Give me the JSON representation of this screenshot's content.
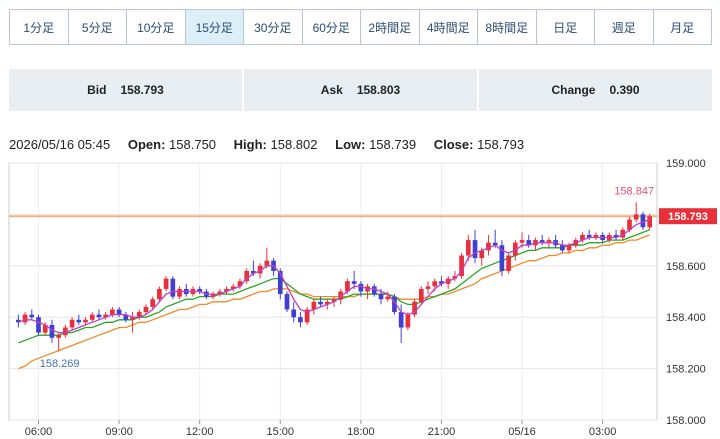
{
  "timeframes": [
    "1分足",
    "5分足",
    "10分足",
    "15分足",
    "30分足",
    "60分足",
    "2時間足",
    "4時間足",
    "8時間足",
    "日足",
    "週足",
    "月足"
  ],
  "active_timeframe": "15分足",
  "quote": {
    "bid_label": "Bid",
    "bid_value": "158.793",
    "ask_label": "Ask",
    "ask_value": "158.803",
    "change_label": "Change",
    "change_value": "0.390"
  },
  "ohlc": {
    "datetime": "2026/05/16 05:45",
    "open_label": "Open:",
    "open": "158.750",
    "high_label": "High:",
    "high": "158.802",
    "low_label": "Low:",
    "low": "158.739",
    "close_label": "Close:",
    "close": "158.793"
  },
  "chart_data": {
    "type": "candlestick",
    "ylim": [
      158.0,
      159.0
    ],
    "y_ticks": [
      "159.000",
      "158.800",
      "158.600",
      "158.400",
      "158.200",
      "158.000"
    ],
    "x_ticks": [
      "06:00",
      "09:00",
      "12:00",
      "15:00",
      "18:00",
      "21:00",
      "05/16",
      "03:00"
    ],
    "current_price": "158.793",
    "high_annotation": "158.847",
    "low_annotation": "158.269",
    "colors": {
      "up": "#e8303a",
      "down": "#4040d0",
      "ma1": "#c040c0",
      "ma2": "#2aa52a",
      "ma3": "#ee8a2a",
      "price_line": "#f0b080",
      "price_tag": "#e8303a",
      "high_text": "#e05070",
      "low_text": "#4070b0"
    },
    "candles": [
      [
        158.39,
        158.41,
        158.36,
        158.38
      ],
      [
        158.38,
        158.42,
        158.37,
        158.41
      ],
      [
        158.41,
        158.43,
        158.39,
        158.4
      ],
      [
        158.4,
        158.41,
        158.33,
        158.34
      ],
      [
        158.34,
        158.38,
        158.33,
        158.37
      ],
      [
        158.37,
        158.39,
        158.3,
        158.32
      ],
      [
        158.32,
        158.34,
        158.269,
        158.33
      ],
      [
        158.33,
        158.37,
        158.32,
        158.36
      ],
      [
        158.36,
        158.4,
        158.35,
        158.39
      ],
      [
        158.39,
        158.41,
        158.37,
        158.38
      ],
      [
        158.38,
        158.4,
        158.37,
        158.39
      ],
      [
        158.39,
        158.42,
        158.38,
        158.41
      ],
      [
        158.41,
        158.43,
        158.39,
        158.4
      ],
      [
        158.4,
        158.42,
        158.39,
        158.41
      ],
      [
        158.41,
        158.44,
        158.4,
        158.43
      ],
      [
        158.43,
        158.44,
        158.4,
        158.41
      ],
      [
        158.41,
        158.42,
        158.38,
        158.39
      ],
      [
        158.39,
        158.42,
        158.34,
        158.4
      ],
      [
        158.4,
        158.43,
        158.39,
        158.42
      ],
      [
        158.42,
        158.45,
        158.41,
        158.44
      ],
      [
        158.44,
        158.48,
        158.43,
        158.47
      ],
      [
        158.47,
        158.52,
        158.46,
        158.51
      ],
      [
        158.51,
        158.56,
        158.5,
        158.55
      ],
      [
        158.55,
        158.56,
        158.47,
        158.48
      ],
      [
        158.48,
        158.52,
        158.47,
        158.51
      ],
      [
        158.51,
        158.53,
        158.48,
        158.49
      ],
      [
        158.49,
        158.52,
        158.48,
        158.51
      ],
      [
        158.51,
        158.52,
        158.49,
        158.5
      ],
      [
        158.5,
        158.51,
        158.47,
        158.48
      ],
      [
        158.48,
        158.5,
        158.47,
        158.49
      ],
      [
        158.49,
        158.51,
        158.48,
        158.5
      ],
      [
        158.5,
        158.52,
        158.49,
        158.51
      ],
      [
        158.51,
        158.53,
        158.5,
        158.52
      ],
      [
        158.52,
        158.55,
        158.51,
        158.54
      ],
      [
        158.54,
        158.59,
        158.53,
        158.58
      ],
      [
        158.58,
        158.62,
        158.56,
        158.57
      ],
      [
        158.57,
        158.61,
        158.55,
        158.6
      ],
      [
        158.6,
        158.67,
        158.59,
        158.62
      ],
      [
        158.62,
        158.63,
        158.56,
        158.58
      ],
      [
        158.58,
        158.59,
        158.47,
        158.49
      ],
      [
        158.49,
        158.5,
        158.42,
        158.43
      ],
      [
        158.43,
        158.46,
        158.38,
        158.4
      ],
      [
        158.4,
        158.42,
        158.36,
        158.38
      ],
      [
        158.38,
        158.44,
        158.37,
        158.43
      ],
      [
        158.43,
        158.47,
        158.41,
        158.46
      ],
      [
        158.46,
        158.48,
        158.44,
        158.45
      ],
      [
        158.45,
        158.47,
        158.43,
        158.46
      ],
      [
        158.46,
        158.48,
        158.44,
        158.47
      ],
      [
        158.47,
        158.51,
        158.45,
        158.5
      ],
      [
        158.5,
        158.55,
        158.49,
        158.54
      ],
      [
        158.54,
        158.58,
        158.51,
        158.53
      ],
      [
        158.53,
        158.54,
        158.48,
        158.5
      ],
      [
        158.5,
        158.53,
        158.47,
        158.52
      ],
      [
        158.52,
        158.53,
        158.48,
        158.49
      ],
      [
        158.49,
        158.51,
        158.45,
        158.47
      ],
      [
        158.47,
        158.5,
        158.46,
        158.48
      ],
      [
        158.48,
        158.49,
        158.41,
        158.42
      ],
      [
        158.42,
        158.45,
        158.3,
        158.36
      ],
      [
        158.36,
        158.42,
        158.35,
        158.41
      ],
      [
        158.41,
        158.47,
        158.4,
        158.46
      ],
      [
        158.46,
        158.52,
        158.45,
        158.51
      ],
      [
        158.51,
        158.54,
        158.49,
        158.52
      ],
      [
        158.52,
        158.55,
        158.5,
        158.54
      ],
      [
        158.54,
        158.56,
        158.52,
        158.53
      ],
      [
        158.53,
        158.56,
        158.51,
        158.55
      ],
      [
        158.55,
        158.58,
        158.54,
        158.56
      ],
      [
        158.56,
        158.65,
        158.55,
        158.64
      ],
      [
        158.64,
        158.72,
        158.62,
        158.7
      ],
      [
        158.7,
        158.74,
        158.61,
        158.63
      ],
      [
        158.63,
        158.67,
        158.6,
        158.66
      ],
      [
        158.66,
        158.72,
        158.64,
        158.69
      ],
      [
        158.69,
        158.74,
        158.67,
        158.68
      ],
      [
        158.68,
        158.7,
        158.56,
        158.58
      ],
      [
        158.58,
        158.65,
        158.57,
        158.64
      ],
      [
        158.64,
        158.7,
        158.62,
        158.69
      ],
      [
        158.69,
        158.73,
        158.67,
        158.7
      ],
      [
        158.7,
        158.72,
        158.67,
        158.68
      ],
      [
        158.68,
        158.71,
        158.66,
        158.7
      ],
      [
        158.7,
        158.72,
        158.68,
        158.69
      ],
      [
        158.69,
        158.71,
        158.67,
        158.7
      ],
      [
        158.7,
        158.72,
        158.67,
        158.68
      ],
      [
        158.68,
        158.7,
        158.65,
        158.66
      ],
      [
        158.66,
        158.69,
        158.65,
        158.68
      ],
      [
        158.68,
        158.71,
        158.67,
        158.7
      ],
      [
        158.7,
        158.73,
        158.69,
        158.72
      ],
      [
        158.72,
        158.74,
        158.7,
        158.71
      ],
      [
        158.71,
        158.73,
        158.7,
        158.72
      ],
      [
        158.72,
        158.73,
        158.69,
        158.7
      ],
      [
        158.7,
        158.73,
        158.69,
        158.72
      ],
      [
        158.72,
        158.74,
        158.7,
        158.71
      ],
      [
        158.71,
        158.75,
        158.7,
        158.74
      ],
      [
        158.74,
        158.79,
        158.73,
        158.78
      ],
      [
        158.78,
        158.847,
        158.77,
        158.8
      ],
      [
        158.8,
        158.81,
        158.74,
        158.75
      ],
      [
        158.75,
        158.802,
        158.739,
        158.793
      ]
    ],
    "ma_fast": [
      158.38,
      158.39,
      158.39,
      158.38,
      158.37,
      158.35,
      158.34,
      158.34,
      158.35,
      158.36,
      158.37,
      158.38,
      158.39,
      158.4,
      158.41,
      158.41,
      158.41,
      158.4,
      158.4,
      158.41,
      158.43,
      158.46,
      158.49,
      158.5,
      158.5,
      158.5,
      158.5,
      158.5,
      158.49,
      158.49,
      158.49,
      158.5,
      158.51,
      158.52,
      158.55,
      158.57,
      158.58,
      158.6,
      158.6,
      158.57,
      158.52,
      158.47,
      158.43,
      158.42,
      158.43,
      158.44,
      158.45,
      158.46,
      158.48,
      158.5,
      158.52,
      158.52,
      158.51,
      158.51,
      158.5,
      158.49,
      158.46,
      158.42,
      158.41,
      158.42,
      158.45,
      158.48,
      158.51,
      158.53,
      158.54,
      158.55,
      158.58,
      158.63,
      158.65,
      158.66,
      158.67,
      158.68,
      158.66,
      158.65,
      158.66,
      158.68,
      158.68,
      158.69,
      158.69,
      158.69,
      158.69,
      158.68,
      158.68,
      158.69,
      158.7,
      158.71,
      158.71,
      158.71,
      158.71,
      158.71,
      158.72,
      158.74,
      158.76,
      158.77,
      158.78
    ],
    "ma_mid": [
      158.3,
      158.31,
      158.32,
      158.33,
      158.33,
      158.33,
      158.33,
      158.34,
      158.34,
      158.35,
      158.36,
      158.36,
      158.37,
      158.38,
      158.38,
      158.39,
      158.39,
      158.39,
      158.4,
      158.4,
      158.41,
      158.42,
      158.44,
      158.45,
      158.46,
      158.47,
      158.47,
      158.48,
      158.48,
      158.48,
      158.49,
      158.49,
      158.49,
      158.5,
      158.51,
      158.52,
      158.53,
      158.54,
      158.55,
      158.55,
      158.53,
      158.51,
      158.49,
      158.48,
      158.47,
      158.47,
      158.47,
      158.47,
      158.47,
      158.48,
      158.49,
      158.49,
      158.49,
      158.49,
      158.49,
      158.49,
      158.48,
      158.46,
      158.45,
      158.45,
      158.46,
      158.47,
      158.48,
      158.49,
      158.5,
      158.51,
      158.53,
      158.55,
      158.57,
      158.59,
      158.6,
      158.61,
      158.62,
      158.63,
      158.64,
      158.65,
      158.66,
      158.66,
      158.67,
      158.67,
      158.67,
      158.67,
      158.68,
      158.68,
      158.68,
      158.69,
      158.69,
      158.69,
      158.7,
      158.7,
      158.7,
      158.71,
      158.72,
      158.73,
      158.74
    ],
    "ma_slow": [
      158.2,
      158.21,
      158.23,
      158.24,
      158.25,
      158.26,
      158.27,
      158.28,
      158.29,
      158.3,
      158.31,
      158.32,
      158.33,
      158.34,
      158.35,
      158.36,
      158.36,
      158.37,
      158.38,
      158.38,
      158.39,
      158.4,
      158.41,
      158.42,
      158.43,
      158.43,
      158.44,
      158.45,
      158.45,
      158.46,
      158.46,
      158.46,
      158.47,
      158.47,
      158.48,
      158.49,
      158.5,
      158.5,
      158.51,
      158.51,
      158.51,
      158.5,
      158.49,
      158.49,
      158.48,
      158.48,
      158.48,
      158.48,
      158.48,
      158.48,
      158.48,
      158.49,
      158.49,
      158.49,
      158.49,
      158.49,
      158.48,
      158.47,
      158.47,
      158.47,
      158.47,
      158.48,
      158.48,
      158.49,
      158.49,
      158.5,
      158.51,
      158.52,
      158.53,
      158.55,
      158.56,
      158.57,
      158.58,
      158.59,
      158.6,
      158.61,
      158.62,
      158.62,
      158.63,
      158.64,
      158.64,
      158.65,
      158.65,
      158.66,
      158.66,
      158.67,
      158.67,
      158.68,
      158.68,
      158.69,
      158.69,
      158.7,
      158.7,
      158.71,
      158.72
    ]
  }
}
